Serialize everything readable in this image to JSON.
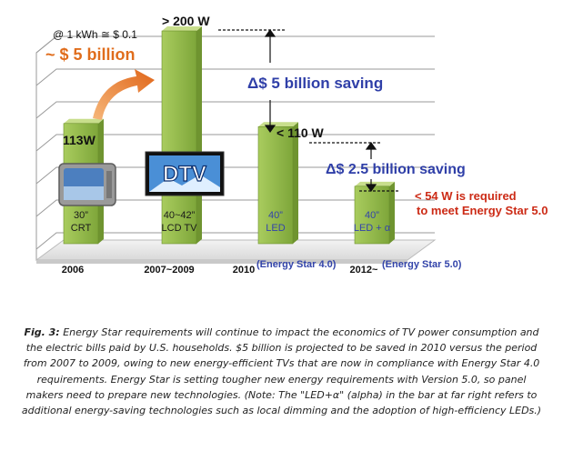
{
  "chart_data": {
    "type": "bar",
    "categories": [
      "2006",
      "2007~2009",
      "2010",
      "2012~"
    ],
    "category_notes": [
      "",
      "",
      "(Energy Star 4.0)",
      "(Energy Star 5.0)"
    ],
    "values": [
      113,
      200,
      110,
      54
    ],
    "value_labels": [
      "113W",
      "> 200 W",
      "< 110 W",
      "< 54 W is required to meet Energy Star 5.0"
    ],
    "bar_labels": [
      [
        "30”",
        "CRT"
      ],
      [
        "40~42”",
        "LCD TV"
      ],
      [
        "40”",
        "LED"
      ],
      [
        "40”",
        "LED + α"
      ]
    ],
    "bar_label_colors": [
      "#1a1a1a",
      "#1a1a1a",
      "#3344aa",
      "#3344aa"
    ],
    "colors": {
      "bar": "#97be4c",
      "bar_side": "#6f9430",
      "bar_top": "#c8de8c",
      "saving": "#2f3fa8",
      "requirement": "#cc2b16",
      "cost": "#e06d1c"
    },
    "annotations": {
      "rate": "@ 1 kWh ≅ $ 0.1",
      "cost": "~ $ 5 billion",
      "saving_1": "Δ$ 5 billion saving",
      "saving_2": "Δ$ 2.5 billion saving",
      "requirement_line1": "< 54 W is required",
      "requirement_line2": "to meet Energy Star 5.0",
      "dtv": "DTV"
    },
    "ylim": [
      0,
      250
    ],
    "grid": true,
    "legend": "none",
    "title": "",
    "xlabel": "",
    "ylabel": ""
  },
  "caption": {
    "label": "Fig. 3:",
    "text": "Energy Star requirements will continue to impact the economics of TV power consumption and the electric bills paid by U.S. households. $5 billion is projected to be saved in 2010 versus the period from 2007 to 2009, owing to new energy-efficient TVs that are now in compliance with Energy Star 4.0 requirements. Energy Star is setting tougher new energy requirements with Version 5.0, so panel makers need to prepare new technologies. (Note: The \"LED+α\" (alpha) in the bar at far right refers to additional energy-saving technologies such as local dimming and the adoption of high-efficiency LEDs.)"
  }
}
